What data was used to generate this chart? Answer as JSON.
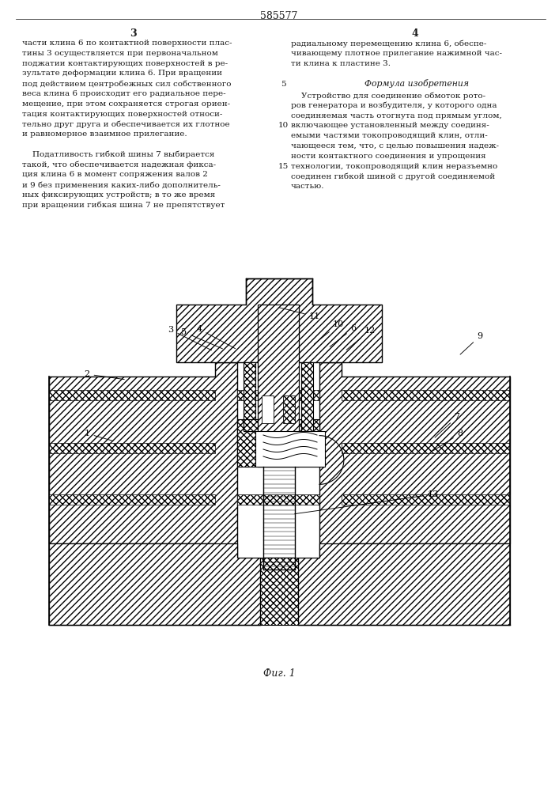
{
  "page_number": "585577",
  "col_left_number": "3",
  "col_right_number": "4",
  "bg_color": "#ffffff",
  "text_color": "#1a1a1a",
  "left_column_text": [
    "части клина 6 по контактной поверхности плас-",
    "тины 3 осуществляется при первоначальном",
    "поджатии контактирующих поверхностей в ре-",
    "зультате деформации клина 6. При вращении",
    "под действием центробежных сил собственного",
    "веса клина 6 происходит его радиальное пере-",
    "мещение, при этом сохраняется строгая ориен-",
    "тация контактирующих поверхностей относи-",
    "тельно друг друга и обеспечивается их глотное",
    "и равномерное взаимное прилегание.",
    "",
    "    Податливость гибкой шины 7 выбирается",
    "такой, что обеспечивается надежная фикса-",
    "ция клина 6 в момент сопряжения валов 2",
    "и 9 без применения каких-либо дополнитель-",
    "ных фиксирующих устройств; в то же время",
    "при вращении гибкая шина 7 не препятствует"
  ],
  "right_column_text_top": [
    "радиальному перемещению клина 6, обеспе-",
    "чивающему плотное прилегание нажимной час-",
    "ти клина к пластине 3."
  ],
  "formula_title": "Формула изобретения",
  "formula_text": [
    "    Устройство для соединение обмоток рото-",
    "ров генератора и возбудителя, у которого одна",
    "соединяемая часть отогнута под прямым углом,",
    "включающее установленный между соединя-",
    "емыми частями токопроводящий клин, отли-",
    "чающееся тем, что, с целью повышения надеж-",
    "ности контактного соединения и упрощения",
    "технологии, токопроводящий клин неразъемно",
    "соединен гибкой шиной с другой соединяемой",
    "частью."
  ],
  "fig_label": "Фиг. 1"
}
